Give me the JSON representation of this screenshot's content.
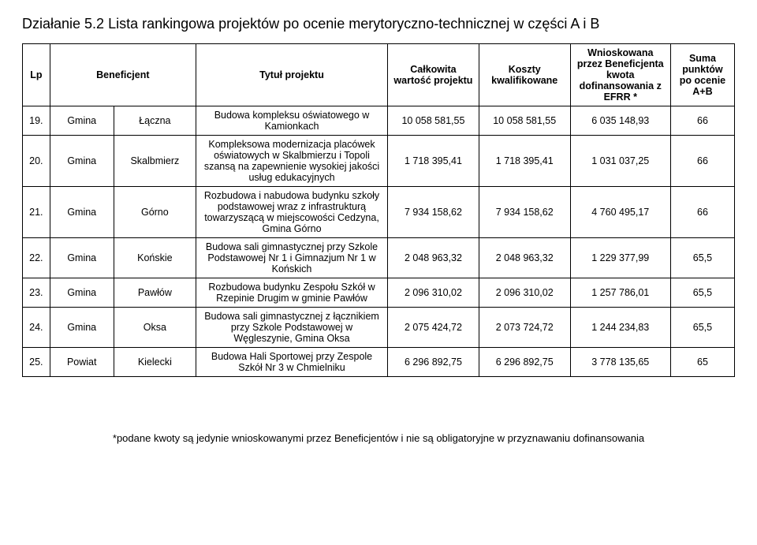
{
  "heading": "Działanie 5.2   Lista rankingowa projektów po ocenie merytoryczno-technicznej w części A i B",
  "columns": {
    "lp": "Lp",
    "beneficiary": "Beneficjent",
    "project_title": "Tytuł projektu",
    "total_value": "Całkowita wartość projektu",
    "eligible_costs": "Koszty kwalifikowane",
    "requested": "Wnioskowana przez Beneficjenta kwota dofinansowania z EFRR *",
    "points": "Suma punktów po ocenie A+B"
  },
  "rows": [
    {
      "lp": "19.",
      "ben_type": "Gmina",
      "ben_name": "Łączna",
      "title": "Budowa kompleksu oświatowego w Kamionkach",
      "total": "10 058 581,55",
      "eligible": "10 058 581,55",
      "requested": "6 035 148,93",
      "points": "66"
    },
    {
      "lp": "20.",
      "ben_type": "Gmina",
      "ben_name": "Skalbmierz",
      "title": "Kompleksowa modernizacja placówek oświatowych w Skalbmierzu i Topoli szansą na zapewnienie wysokiej jakości usług edukacyjnych",
      "total": "1 718 395,41",
      "eligible": "1 718 395,41",
      "requested": "1 031 037,25",
      "points": "66"
    },
    {
      "lp": "21.",
      "ben_type": "Gmina",
      "ben_name": "Górno",
      "title": "Rozbudowa i nabudowa budynku szkoły podstawowej wraz z infrastrukturą towarzyszącą w miejscowości Cedzyna, Gmina Górno",
      "total": "7 934 158,62",
      "eligible": "7 934 158,62",
      "requested": "4 760 495,17",
      "points": "66"
    },
    {
      "lp": "22.",
      "ben_type": "Gmina",
      "ben_name": "Końskie",
      "title": "Budowa sali gimnastycznej przy Szkole Podstawowej Nr 1 i Gimnazjum Nr 1 w Końskich",
      "total": "2 048 963,32",
      "eligible": "2 048 963,32",
      "requested": "1 229 377,99",
      "points": "65,5"
    },
    {
      "lp": "23.",
      "ben_type": "Gmina",
      "ben_name": "Pawłów",
      "title": "Rozbudowa budynku Zespołu Szkół w Rzepinie Drugim w gminie Pawłów",
      "total": "2 096 310,02",
      "eligible": "2 096 310,02",
      "requested": "1 257 786,01",
      "points": "65,5"
    },
    {
      "lp": "24.",
      "ben_type": "Gmina",
      "ben_name": "Oksa",
      "title": "Budowa sali gimnastycznej z łącznikiem przy Szkole Podstawowej w Węgleszynie, Gmina Oksa",
      "total": "2 075 424,72",
      "eligible": "2 073 724,72",
      "requested": "1 244 234,83",
      "points": "65,5"
    },
    {
      "lp": "25.",
      "ben_type": "Powiat",
      "ben_name": "Kielecki",
      "title": "Budowa Hali Sportowej przy Zespole Szkół Nr 3 w Chmielniku",
      "total": "6 296 892,75",
      "eligible": "6 296 892,75",
      "requested": "3 778 135,65",
      "points": "65"
    }
  ],
  "footnote": "*podane kwoty są jedynie wnioskowanymi przez Beneficjentów i nie są obligatoryjne w przyznawaniu dofinansowania",
  "style": {
    "background_color": "#ffffff",
    "text_color": "#000000",
    "border_color": "#000000",
    "heading_fontsize": 18,
    "cell_fontsize": 12.5,
    "footnote_fontsize": 13,
    "font_family": "Arial"
  }
}
